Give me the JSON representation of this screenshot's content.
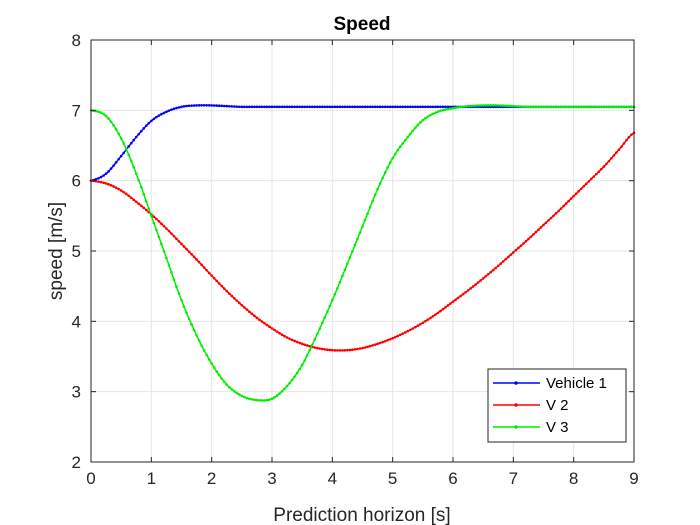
{
  "chart_data": {
    "type": "line",
    "title": "Speed",
    "xlabel": "Prediction horizon [s]",
    "ylabel": "speed [m/s]",
    "xlim": [
      0,
      9
    ],
    "ylim": [
      2,
      8
    ],
    "xticks": [
      "0",
      "1",
      "2",
      "3",
      "4",
      "5",
      "6",
      "7",
      "8",
      "9"
    ],
    "yticks": [
      "2",
      "3",
      "4",
      "5",
      "6",
      "7",
      "8"
    ],
    "grid": true,
    "legend_position": "bottom-right",
    "x": [
      0,
      0.25,
      0.5,
      0.75,
      1,
      1.25,
      1.5,
      1.75,
      2,
      2.25,
      2.5,
      2.75,
      3,
      3.25,
      3.5,
      3.75,
      4,
      4.25,
      4.5,
      4.75,
      5,
      5.25,
      5.5,
      5.75,
      6,
      6.25,
      6.5,
      6.75,
      7,
      7.25,
      7.5,
      7.75,
      8,
      8.25,
      8.5,
      8.75,
      9
    ],
    "series": [
      {
        "name": "Vehicle 1",
        "color": "#0000ff",
        "values": [
          6.0,
          6.1,
          6.35,
          6.62,
          6.85,
          6.98,
          7.05,
          7.07,
          7.07,
          7.06,
          7.05,
          7.05,
          7.05,
          7.05,
          7.05,
          7.05,
          7.05,
          7.05,
          7.05,
          7.05,
          7.05,
          7.05,
          7.05,
          7.05,
          7.05,
          7.05,
          7.05,
          7.05,
          7.05,
          7.05,
          7.05,
          7.05,
          7.05,
          7.05,
          7.05,
          7.05,
          7.05
        ]
      },
      {
        "name": "V 2",
        "color": "#ff0000",
        "values": [
          6.0,
          5.96,
          5.86,
          5.7,
          5.52,
          5.32,
          5.1,
          4.88,
          4.65,
          4.43,
          4.23,
          4.05,
          3.9,
          3.77,
          3.68,
          3.62,
          3.59,
          3.59,
          3.62,
          3.68,
          3.76,
          3.86,
          3.98,
          4.12,
          4.28,
          4.44,
          4.61,
          4.79,
          4.98,
          5.17,
          5.37,
          5.57,
          5.78,
          5.99,
          6.2,
          6.44,
          6.68
        ]
      },
      {
        "name": "V 3",
        "color": "#00ee00",
        "values": [
          7.0,
          6.92,
          6.6,
          6.1,
          5.5,
          4.9,
          4.3,
          3.8,
          3.4,
          3.1,
          2.94,
          2.88,
          2.9,
          3.08,
          3.38,
          3.82,
          4.3,
          4.82,
          5.35,
          5.88,
          6.32,
          6.62,
          6.86,
          6.98,
          7.03,
          7.06,
          7.07,
          7.07,
          7.06,
          7.05,
          7.05,
          7.05,
          7.05,
          7.05,
          7.05,
          7.05,
          7.05
        ]
      }
    ]
  }
}
